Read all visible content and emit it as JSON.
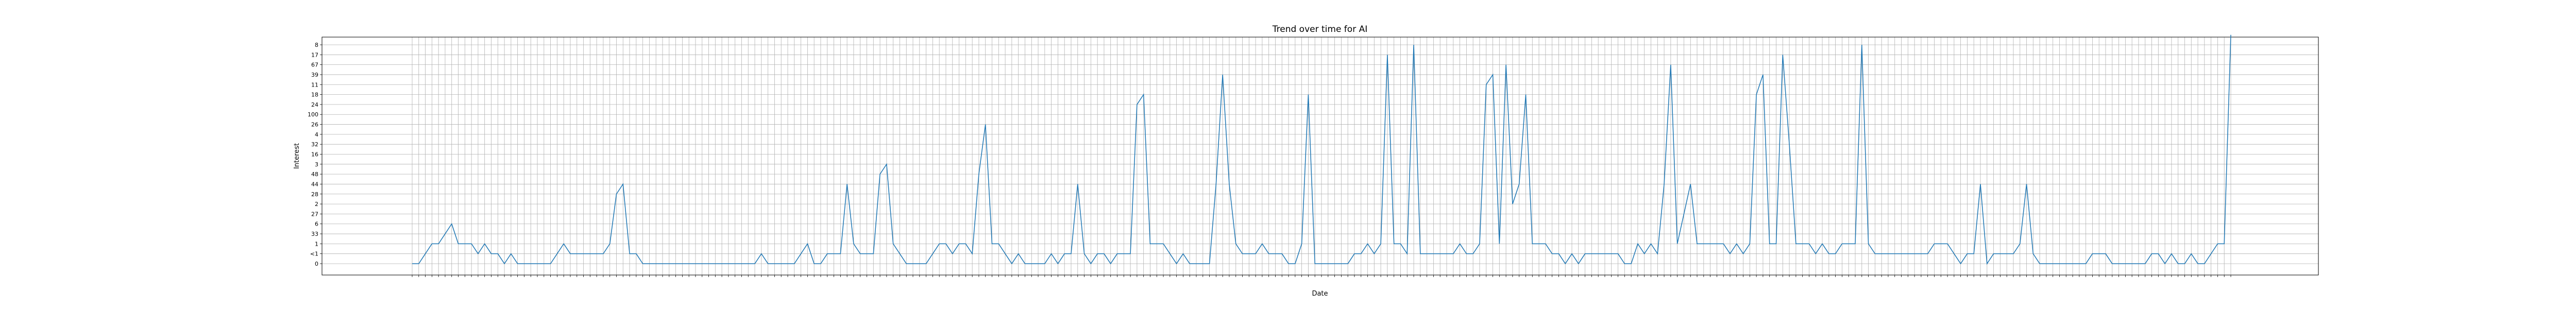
{
  "chart_data": {
    "type": "line",
    "title": "Trend over time for AI",
    "xlabel": "Date",
    "ylabel": "Interest",
    "grid": true,
    "y_ticks": [
      "0",
      "<1",
      "1",
      "33",
      "6",
      "27",
      "2",
      "28",
      "44",
      "48",
      "3",
      "16",
      "32",
      "4",
      "26",
      "100",
      "24",
      "18",
      "11",
      "39",
      "67",
      "17",
      "8"
    ],
    "series": [
      {
        "color": "#1f77b4",
        "values": [
          0,
          0,
          1,
          2,
          2,
          3,
          4,
          2,
          2,
          2,
          1,
          2,
          1,
          1,
          0,
          1,
          0,
          0,
          0,
          0,
          0,
          0,
          1,
          2,
          1,
          1,
          1,
          1,
          1,
          1,
          2,
          7,
          8,
          1,
          1,
          0,
          0,
          0,
          0,
          0,
          0,
          0,
          0,
          0,
          0,
          0,
          0,
          0,
          0,
          0,
          0,
          0,
          0,
          1,
          0,
          0,
          0,
          0,
          0,
          1,
          2,
          0,
          0,
          1,
          1,
          1,
          8,
          2,
          1,
          1,
          1,
          9,
          10,
          2,
          1,
          0,
          0,
          0,
          0,
          1,
          2,
          2,
          1,
          2,
          2,
          1,
          9,
          14,
          2,
          2,
          1,
          0,
          1,
          0,
          0,
          0,
          0,
          1,
          0,
          1,
          1,
          8,
          1,
          0,
          1,
          1,
          0,
          1,
          1,
          1,
          16,
          17,
          2,
          2,
          2,
          1,
          0,
          1,
          0,
          0,
          0,
          0,
          8,
          19,
          8,
          2,
          1,
          1,
          1,
          2,
          1,
          1,
          1,
          0,
          0,
          2,
          17,
          0,
          0,
          0,
          0,
          0,
          0,
          1,
          1,
          2,
          1,
          2,
          21,
          2,
          2,
          1,
          22,
          1,
          1,
          1,
          1,
          1,
          1,
          2,
          1,
          1,
          2,
          18,
          19,
          2,
          20,
          6,
          8,
          17,
          2,
          2,
          2,
          1,
          1,
          0,
          1,
          0,
          1,
          1,
          1,
          1,
          1,
          1,
          0,
          0,
          2,
          1,
          2,
          1,
          8,
          20,
          2,
          5,
          8,
          2,
          2,
          2,
          2,
          2,
          1,
          2,
          1,
          2,
          17,
          19,
          2,
          2,
          21,
          12,
          2,
          2,
          2,
          1,
          2,
          1,
          1,
          2,
          2,
          2,
          22,
          2,
          1,
          1,
          1,
          1,
          1,
          1,
          1,
          1,
          1,
          2,
          2,
          2,
          1,
          0,
          1,
          1,
          8,
          0,
          1,
          1,
          1,
          1,
          2,
          8,
          1,
          0,
          0,
          0,
          0,
          0,
          0,
          0,
          0,
          1,
          1,
          1,
          0,
          0,
          0,
          0,
          0,
          0,
          1,
          1,
          0,
          1,
          0,
          0,
          1,
          0,
          0,
          1,
          2,
          2,
          23
        ]
      }
    ]
  }
}
